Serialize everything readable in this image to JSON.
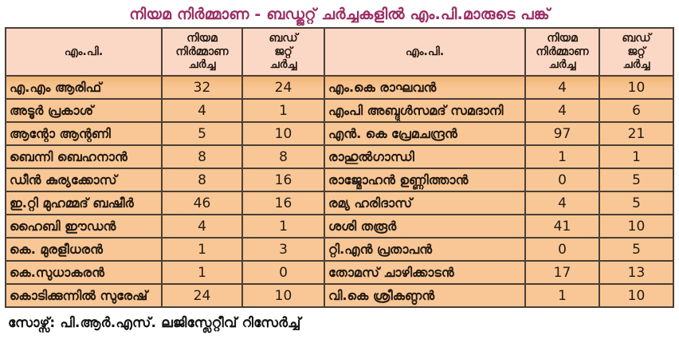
{
  "colors": {
    "title_text": "#9b2e63",
    "header_bg": "#fbd8c6",
    "row_bg": "#f8c795",
    "row_top_shade": "#f0b172",
    "border": "#4a3f36",
    "cell_text": "#241a12",
    "page_bg": "#ffffff"
  },
  "header_display": {
    "mp": "എം.പി.",
    "law": "നിയമ\nനിർമ്മാണ\nചർച്ച",
    "budget": "ബഡ്\nജറ്റ്\nചർച്ച"
  },
  "chart_data": {
    "type": "table",
    "title": "നിയമ നിർമ്മാണ - ബഡ്ജറ്റ് ചർച്ചകളിൽ എം.പി.മാരുടെ പങ്ക്",
    "columns": [
      "എം.പി.",
      "നിയമ നിർമ്മാണ ചർച്ച",
      "ബഡ്ജറ്റ് ചർച്ച"
    ],
    "left_rows": [
      [
        "എ.എം ആരിഫ്",
        32,
        24
      ],
      [
        "അടൂർ പ്രകാശ്",
        4,
        1
      ],
      [
        "ആന്റോ ആന്റണി",
        5,
        10
      ],
      [
        "ബെന്നി ബെഹനാൻ",
        8,
        8
      ],
      [
        "ഡീൻ കുര്യക്കോസ്",
        8,
        16
      ],
      [
        "ഇ.റ്റി മുഹമ്മദ് ബഷീർ",
        46,
        16
      ],
      [
        "ഹൈബി ഈഡൻ",
        4,
        1
      ],
      [
        "കെ. മുരളീധരൻ",
        1,
        3
      ],
      [
        "കെ.സുധാകരൻ",
        1,
        0
      ],
      [
        "കൊടിക്കുന്നിൽ സുരേഷ്",
        24,
        10
      ]
    ],
    "right_rows": [
      [
        "എം.കെ രാഘവൻ",
        4,
        10
      ],
      [
        "എംപി അബ്ദുൾസമദ് സമദാനി",
        4,
        6
      ],
      [
        "എൻ. കെ പ്രേമചന്ദ്രൻ",
        97,
        21
      ],
      [
        "രാഹുൽഗാന്ധി",
        1,
        1
      ],
      [
        "രാജ്മോഹൻ ഉണ്ണിത്താൻ",
        0,
        5
      ],
      [
        "രമ്യ ഹരിദാസ്",
        4,
        5
      ],
      [
        "ശശി തരൂർ",
        41,
        10
      ],
      [
        "റ്റി.എൻ പ്രതാപൻ",
        0,
        5
      ],
      [
        "തോമസ് ചാഴിക്കാടൻ",
        17,
        13
      ],
      [
        "വി.കെ ശ്രീകണ്ഠൻ",
        1,
        10
      ]
    ],
    "source": "സോഴ്സ്: പി.ആർ.എസ്. ലജിസ്ലേറ്റീവ് റിസേർച്ച്"
  }
}
